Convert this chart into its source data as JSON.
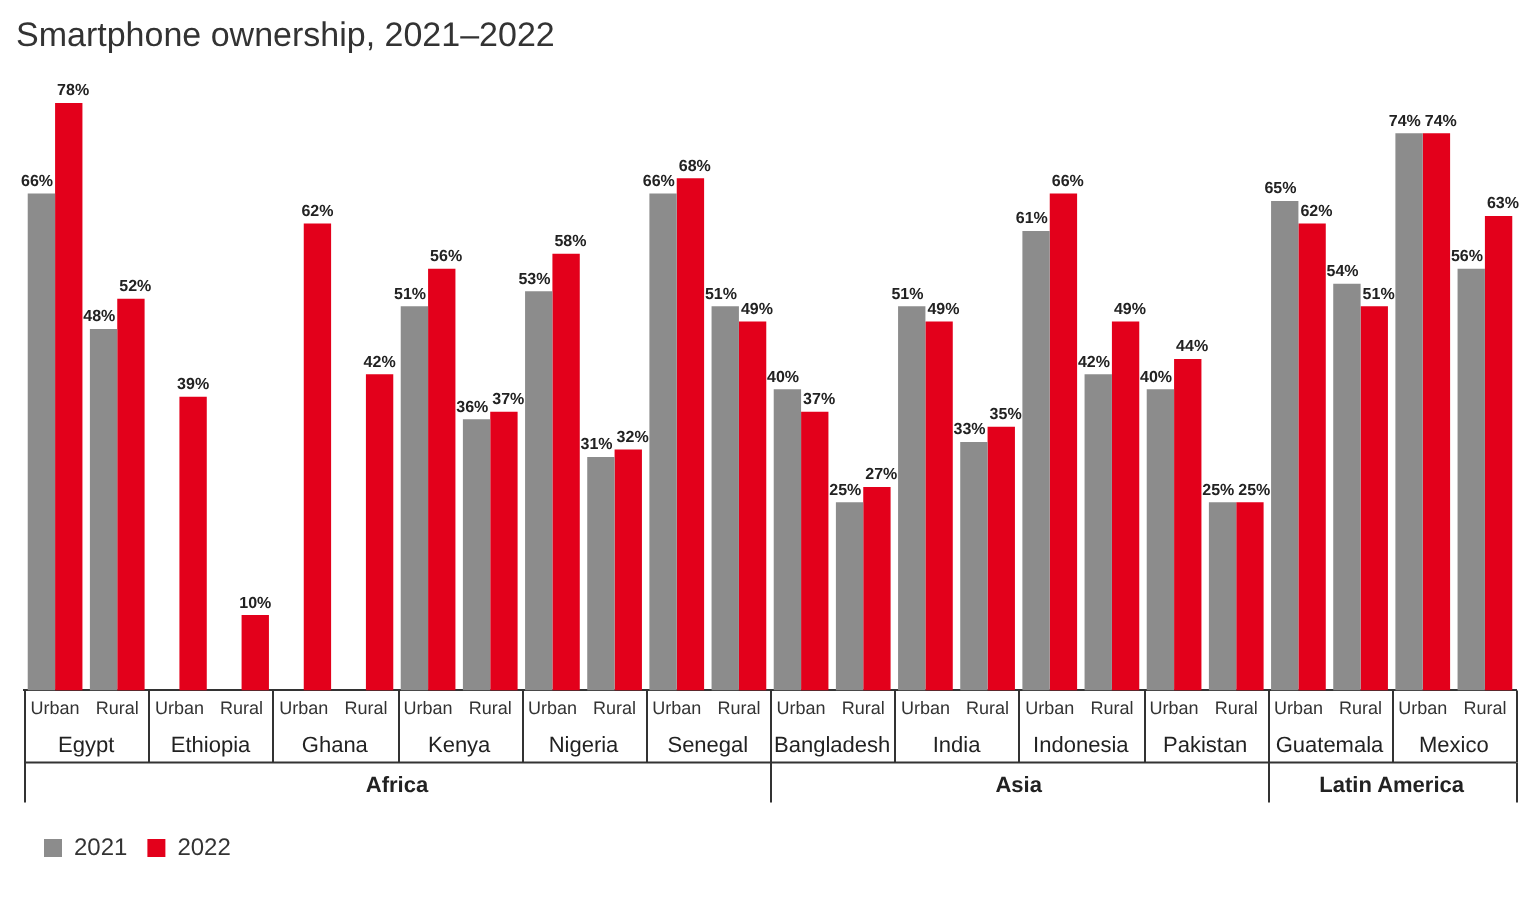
{
  "chart_data": {
    "type": "bar",
    "title": "Smartphone ownership, 2021–2022",
    "categories": [
      "Urban",
      "Rural",
      "Urban",
      "Rural",
      "Urban",
      "Rural",
      "Urban",
      "Rural",
      "Urban",
      "Rural",
      "Urban",
      "Rural",
      "Urban",
      "Rural",
      "Urban",
      "Rural",
      "Urban",
      "Rural",
      "Urban",
      "Rural",
      "Urban",
      "Rural",
      "Urban",
      "Rural"
    ],
    "series": [
      {
        "name": "2021",
        "color": "#8c8c8c",
        "values": [
          66,
          48,
          null,
          null,
          null,
          null,
          51,
          36,
          53,
          31,
          66,
          51,
          40,
          25,
          51,
          33,
          61,
          42,
          40,
          25,
          65,
          54,
          74,
          56
        ],
        "value_labels": [
          "66%",
          "48%",
          null,
          null,
          null,
          null,
          "51%",
          "36%",
          "53%",
          "31%",
          "66%",
          "51%",
          "40%",
          "25%",
          "51%",
          "33%",
          "61%",
          "42%",
          "40%",
          "25%",
          "65%",
          "54%",
          "74%",
          "56%"
        ]
      },
      {
        "name": "2022",
        "color": "#e3001b",
        "values": [
          78,
          52,
          39,
          10,
          62,
          42,
          56,
          37,
          58,
          32,
          68,
          49,
          37,
          27,
          49,
          35,
          66,
          49,
          44,
          25,
          62,
          51,
          74,
          63
        ],
        "value_labels": [
          "78%",
          "52%",
          "39%",
          "10%",
          "62%",
          "42%",
          "56%",
          "37%",
          "58%",
          "32%",
          "68%",
          "49%",
          "37%",
          "27%",
          "49%",
          "35%",
          "66%",
          "49%",
          "44%",
          "25%",
          "62%",
          "51%",
          "74%",
          "63%"
        ]
      }
    ],
    "annotations": [
      "Egypt",
      "Ethiopia",
      "Ghana",
      "Kenya",
      "Nigeria",
      "Senegal",
      "Bangladesh",
      "India",
      "Indonesia",
      "Pakistan",
      "Guatemala",
      "Mexico",
      "Africa",
      "Asia",
      "Latin America"
    ],
    "legend": "bottom left",
    "grid": false
  }
}
